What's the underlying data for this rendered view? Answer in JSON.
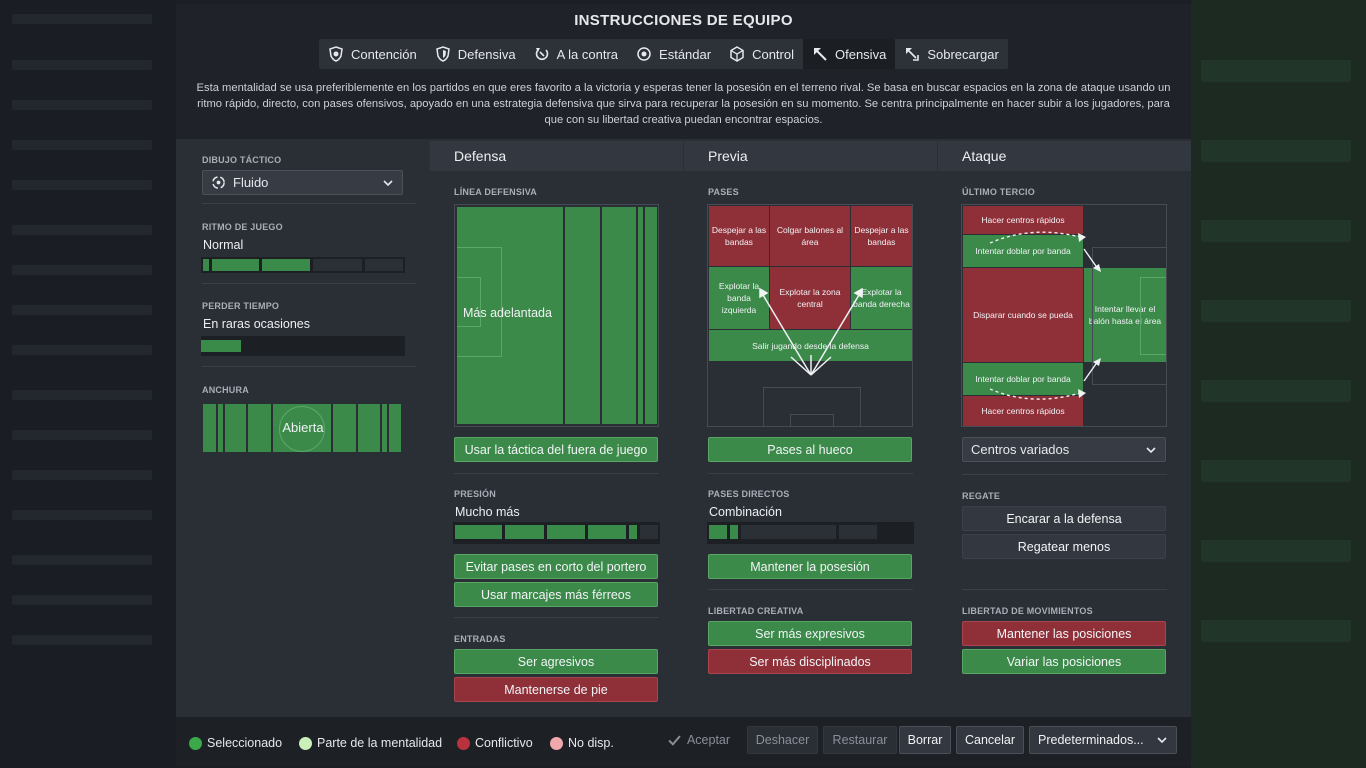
{
  "window": {
    "title": "INSTRUCCIONES DE EQUIPO"
  },
  "tabs": [
    {
      "label": "Contención",
      "icon": "shield-heart-icon"
    },
    {
      "label": "Defensiva",
      "icon": "shield-icon"
    },
    {
      "label": "A la contra",
      "icon": "counter-arrow-icon"
    },
    {
      "label": "Estándar",
      "icon": "target-icon"
    },
    {
      "label": "Control",
      "icon": "cube-icon"
    },
    {
      "label": "Ofensiva",
      "icon": "arrow-up-left-icon",
      "active": true
    },
    {
      "label": "Sobrecargar",
      "icon": "overload-icon"
    }
  ],
  "description": "Esta mentalidad se usa preferiblemente en los partidos en que eres favorito a la victoria y esperas tener la posesión en el terreno rival. Se basa en buscar espacios en la zona de ataque usando un ritmo rápido, directo, con pases ofensivos, apoyado en una estrategia defensiva que sirva para recuperar la posesión en su momento. Se centra principalmente en hacer subir a los jugadores, para que con su libertad creativa puedan encontrar espacios.",
  "left_panel": {
    "formation": {
      "label": "DIBUJO TÁCTICO",
      "value": "Fluido"
    },
    "tempo": {
      "label": "RITMO DE JUEGO",
      "value": "Normal",
      "level": 3,
      "max": 5
    },
    "time_wasting": {
      "label": "PERDER TIEMPO",
      "value": "En raras ocasiones",
      "level": 1,
      "max": 5
    },
    "width": {
      "label": "ANCHURA",
      "value": "Abierta"
    }
  },
  "defense": {
    "heading": "Defensa",
    "line_label": "LÍNEA DEFENSIVA",
    "line_value": "Más adelantada",
    "offside_button": "Usar la táctica del fuera de juego",
    "press_label": "PRESIÓN",
    "press_value": "Mucho más",
    "press_level": 4.5,
    "press_max": 5,
    "buttons": [
      "Evitar pases en corto del portero",
      "Usar marcajes más férreos"
    ],
    "tackling_label": "ENTRADAS",
    "tackle_aggressive": "Ser agresivos",
    "tackle_stay": "Mantenerse de pie"
  },
  "buildup": {
    "heading": "Previa",
    "passes_label": "PASES",
    "zones": {
      "clear_left": "Despejar a las bandas",
      "lob_center": "Colgar balones al área",
      "clear_right": "Despejar a las bandas",
      "exploit_left": "Explotar la banda izquierda",
      "exploit_center": "Explotar la zona central",
      "exploit_right": "Explotar la banda derecha",
      "play_out": "Salir jugando desde la defensa"
    },
    "through_button": "Pases al hueco",
    "directness_label": "PASES DIRECTOS",
    "directness_value": "Combinación",
    "directness_level": 1.5,
    "directness_max": 5,
    "possession_button": "Mantener la posesión",
    "creative_label": "LIBERTAD CREATIVA",
    "expressive": "Ser más expresivos",
    "disciplined": "Ser más disciplinados"
  },
  "attack": {
    "heading": "Ataque",
    "final_third_label": "ÚLTIMO TERCIO",
    "zones": {
      "cross_top": "Hacer centros rápidos",
      "overlap_top": "Intentar doblar por banda",
      "shoot": "Disparar cuando se pueda",
      "work_into_box": "Intentar llevar el balón hasta el área",
      "overlap_bottom": "Intentar doblar por banda",
      "cross_bottom": "Hacer centros rápidos"
    },
    "crossing_select": "Centros variados",
    "dribble_label": "REGATE",
    "dribble_run": "Encarar a la defensa",
    "dribble_less": "Regatear menos",
    "movement_label": "LIBERTAD DE MOVIMIENTOS",
    "hold_positions": "Mantener las posiciones",
    "vary_positions": "Variar las posiciones"
  },
  "legend": {
    "selected": "Seleccionado",
    "part": "Parte de la mentalidad",
    "conflict": "Conflictivo",
    "unavailable": "No disp."
  },
  "actions": {
    "accept": "Aceptar",
    "undo": "Deshacer",
    "restore": "Restaurar",
    "clear": "Borrar",
    "cancel": "Cancelar",
    "presets": "Predeterminados..."
  },
  "colors": {
    "selected": "#3b8a4a",
    "part": "#c9f0b8",
    "conflict": "#b8333d",
    "unavailable": "#f0a9aa"
  }
}
